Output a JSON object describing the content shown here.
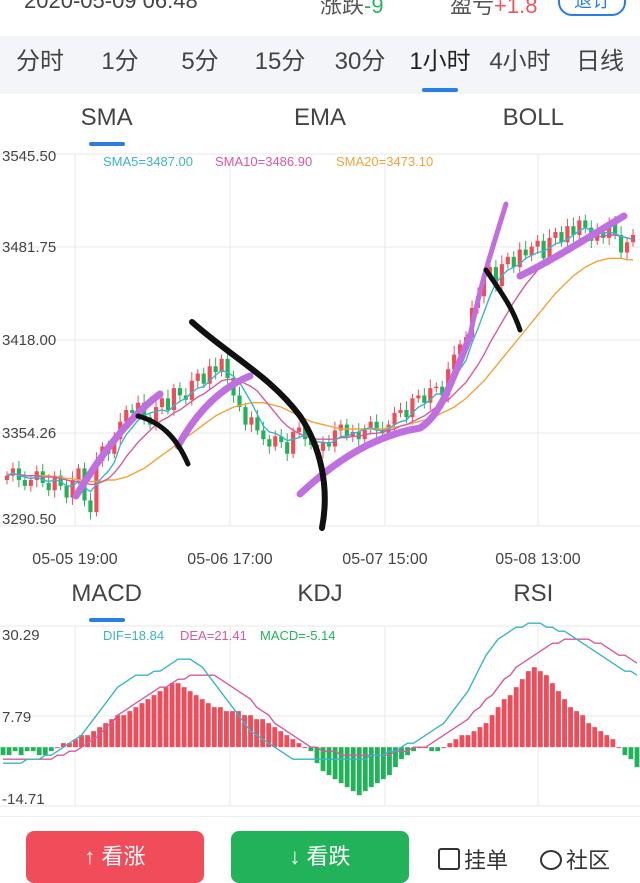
{
  "top": {
    "date": "2020-05-09 06:48",
    "change_label": "涨跌",
    "change_value": "-9",
    "pnl_label": "盈亏",
    "pnl_value": "+1.8",
    "quit_label": "退订"
  },
  "periods": [
    {
      "label": "分时",
      "active": false
    },
    {
      "label": "1分",
      "active": false
    },
    {
      "label": "5分",
      "active": false
    },
    {
      "label": "15分",
      "active": false
    },
    {
      "label": "30分",
      "active": false
    },
    {
      "label": "1小时",
      "active": true
    },
    {
      "label": "4小时",
      "active": false
    },
    {
      "label": "日线",
      "active": false
    }
  ],
  "main_tabs": [
    {
      "label": "SMA",
      "active": true
    },
    {
      "label": "EMA",
      "active": false
    },
    {
      "label": "BOLL",
      "active": false
    }
  ],
  "sub_tabs": [
    {
      "label": "MACD",
      "active": true
    },
    {
      "label": "KDJ",
      "active": false
    },
    {
      "label": "RSI",
      "active": false
    }
  ],
  "legend_main": {
    "sma5": "SMA5=3487.00",
    "sma10": "SMA10=3486.90",
    "sma20": "SMA20=3473.10"
  },
  "legend_sub": {
    "dif": "DIF=18.84",
    "dea": "DEA=21.41",
    "macd": "MACD=-5.14"
  },
  "colors": {
    "up": "#f04c5a",
    "down": "#22b35a",
    "sma5": "#3bb4c9",
    "sma10": "#d65aa0",
    "sma20": "#f0a43a",
    "accent": "#2a7ee3"
  },
  "bottom": {
    "buy_up": "看涨",
    "buy_down": "看跌",
    "orders": "挂单",
    "community": "社区"
  },
  "chart_data": [
    {
      "type": "candlestick",
      "ylim": [
        3290.5,
        3545.5
      ],
      "y_ticks": [
        "3545.50",
        "3481.75",
        "3418.00",
        "3354.26",
        "3290.50"
      ],
      "x_ticks": [
        "05-05 19:00",
        "05-06 17:00",
        "05-07 15:00",
        "05-08 13:00"
      ],
      "grid": true,
      "close": [
        3325,
        3330,
        3322,
        3318,
        3322,
        3328,
        3320,
        3315,
        3325,
        3318,
        3310,
        3322,
        3330,
        3308,
        3300,
        3335,
        3345,
        3340,
        3350,
        3362,
        3370,
        3368,
        3375,
        3365,
        3360,
        3372,
        3378,
        3370,
        3385,
        3380,
        3377,
        3390,
        3395,
        3388,
        3400,
        3396,
        3405,
        3392,
        3380,
        3372,
        3360,
        3365,
        3356,
        3350,
        3345,
        3352,
        3348,
        3340,
        3355,
        3358,
        3350,
        3346,
        3342,
        3348,
        3345,
        3356,
        3360,
        3352,
        3355,
        3350,
        3357,
        3362,
        3356,
        3354,
        3360,
        3368,
        3370,
        3365,
        3378,
        3380,
        3375,
        3385,
        3386,
        3380,
        3398,
        3408,
        3415,
        3420,
        3440,
        3448,
        3462,
        3468,
        3455,
        3470,
        3475,
        3468,
        3480,
        3476,
        3482,
        3486,
        3474,
        3488,
        3492,
        3485,
        3496,
        3490,
        3500,
        3495,
        3486,
        3492,
        3488,
        3498,
        3490,
        3478,
        3485,
        3490
      ],
      "sma5": [
        3325,
        3327,
        3325,
        3324,
        3323,
        3324,
        3322,
        3321,
        3322,
        3321,
        3318,
        3318,
        3321,
        3317,
        3314,
        3319,
        3324,
        3328,
        3334,
        3346,
        3353,
        3358,
        3363,
        3366,
        3368,
        3369,
        3370,
        3369,
        3373,
        3376,
        3378,
        3382,
        3385,
        3386,
        3390,
        3394,
        3397,
        3396,
        3393,
        3389,
        3382,
        3375,
        3367,
        3359,
        3355,
        3354,
        3352,
        3349,
        3350,
        3351,
        3353,
        3350,
        3348,
        3348,
        3347,
        3349,
        3352,
        3352,
        3354,
        3355,
        3357,
        3358,
        3356,
        3356,
        3357,
        3360,
        3362,
        3363,
        3368,
        3372,
        3374,
        3377,
        3381,
        3381,
        3385,
        3391,
        3398,
        3404,
        3416,
        3426,
        3437,
        3448,
        3457,
        3462,
        3466,
        3468,
        3470,
        3474,
        3476,
        3478,
        3479,
        3481,
        3484,
        3485,
        3487,
        3490,
        3493,
        3495,
        3493,
        3493,
        3491,
        3492,
        3491,
        3489,
        3488,
        3487
      ],
      "sma10": [
        3325,
        3326,
        3326,
        3325,
        3325,
        3325,
        3324,
        3324,
        3324,
        3323,
        3322,
        3321,
        3321,
        3320,
        3319,
        3319,
        3321,
        3323,
        3327,
        3332,
        3338,
        3343,
        3348,
        3352,
        3356,
        3360,
        3363,
        3365,
        3368,
        3370,
        3373,
        3376,
        3379,
        3381,
        3384,
        3387,
        3390,
        3391,
        3391,
        3390,
        3388,
        3386,
        3383,
        3378,
        3373,
        3368,
        3363,
        3359,
        3356,
        3354,
        3352,
        3351,
        3350,
        3350,
        3350,
        3350,
        3351,
        3351,
        3352,
        3352,
        3353,
        3354,
        3354,
        3355,
        3356,
        3357,
        3359,
        3360,
        3362,
        3364,
        3366,
        3369,
        3372,
        3374,
        3377,
        3381,
        3385,
        3389,
        3395,
        3401,
        3408,
        3416,
        3423,
        3430,
        3437,
        3444,
        3450,
        3456,
        3461,
        3466,
        3470,
        3473,
        3476,
        3479,
        3481,
        3483,
        3485,
        3487,
        3488,
        3489,
        3489,
        3490,
        3490,
        3489,
        3488,
        3487
      ],
      "sma20": [
        3326,
        3326,
        3326,
        3325,
        3325,
        3325,
        3325,
        3325,
        3324,
        3324,
        3323,
        3323,
        3322,
        3322,
        3321,
        3321,
        3321,
        3322,
        3322,
        3323,
        3324,
        3326,
        3328,
        3330,
        3333,
        3336,
        3339,
        3342,
        3345,
        3348,
        3351,
        3354,
        3357,
        3360,
        3363,
        3366,
        3368,
        3370,
        3372,
        3373,
        3374,
        3375,
        3375,
        3375,
        3374,
        3373,
        3372,
        3370,
        3368,
        3366,
        3364,
        3362,
        3361,
        3360,
        3359,
        3358,
        3357,
        3357,
        3357,
        3357,
        3357,
        3357,
        3357,
        3357,
        3358,
        3358,
        3359,
        3360,
        3361,
        3362,
        3363,
        3364,
        3366,
        3368,
        3370,
        3372,
        3375,
        3378,
        3382,
        3386,
        3390,
        3395,
        3400,
        3405,
        3410,
        3415,
        3420,
        3425,
        3430,
        3435,
        3440,
        3445,
        3450,
        3454,
        3458,
        3462,
        3465,
        3468,
        3470,
        3472,
        3473,
        3474,
        3474,
        3474,
        3473,
        3473
      ]
    },
    {
      "type": "bar",
      "ylim": [
        -14.71,
        30.29
      ],
      "y_ticks": [
        "30.29",
        "7.79",
        "-14.71"
      ],
      "macd": [
        -2,
        -2,
        -1,
        -2,
        -1,
        -1,
        -2,
        -2,
        -1,
        0,
        1,
        1,
        2,
        3,
        3,
        4,
        5,
        6,
        7,
        8,
        8,
        9,
        10,
        11,
        12,
        13,
        14,
        15,
        16,
        16,
        15,
        14,
        13,
        12,
        11,
        10,
        10,
        9,
        9,
        9,
        8,
        8,
        7,
        7,
        6,
        5,
        4,
        3,
        2,
        1,
        0,
        -1,
        -4,
        -6,
        -7,
        -8,
        -9,
        -10,
        -11,
        -12,
        -11,
        -10,
        -9,
        -8,
        -7,
        -5,
        -3,
        -2,
        -1,
        0,
        0,
        -1,
        -1,
        0,
        1,
        2,
        3,
        3,
        4,
        5,
        6,
        8,
        10,
        12,
        13,
        15,
        17,
        19,
        20,
        19,
        18,
        16,
        14,
        12,
        10,
        9,
        8,
        6,
        5,
        4,
        3,
        2,
        0,
        -2,
        -3,
        -5
      ],
      "dif": [
        -4,
        -4,
        -4,
        -4,
        -3,
        -3,
        -3,
        -2,
        -2,
        -1,
        0,
        1,
        2,
        3,
        5,
        7,
        9,
        11,
        13,
        15,
        16,
        17,
        18,
        18,
        18,
        19,
        19,
        20,
        21,
        22,
        22,
        22,
        21,
        20,
        18,
        16,
        14,
        12,
        10,
        8,
        6,
        4,
        3,
        2,
        1,
        0,
        -1,
        -2,
        -3,
        -3,
        -3,
        -3,
        -3,
        -3,
        -3,
        -3,
        -3,
        -3,
        -3,
        -3,
        -3,
        -2,
        -2,
        -2,
        -1,
        -1,
        0,
        1,
        1,
        2,
        3,
        4,
        5,
        6,
        8,
        10,
        12,
        14,
        17,
        20,
        23,
        25,
        27,
        28,
        29,
        30,
        30,
        31,
        31,
        31,
        30,
        30,
        29,
        29,
        28,
        27,
        26,
        25,
        24,
        23,
        22,
        21,
        20,
        19,
        19,
        18
      ],
      "dea": [
        -3,
        -3,
        -3,
        -3,
        -3,
        -3,
        -3,
        -3,
        -3,
        -2,
        -2,
        -1,
        -1,
        0,
        1,
        2,
        3,
        5,
        6,
        8,
        9,
        10,
        11,
        12,
        13,
        14,
        15,
        15,
        16,
        17,
        17,
        18,
        18,
        18,
        18,
        18,
        17,
        16,
        15,
        14,
        13,
        12,
        10,
        9,
        8,
        6,
        5,
        4,
        3,
        2,
        1,
        0,
        0,
        -1,
        -1,
        -1,
        -2,
        -2,
        -2,
        -2,
        -2,
        -2,
        -2,
        -2,
        -2,
        -1,
        -1,
        -1,
        0,
        0,
        0,
        1,
        2,
        3,
        4,
        5,
        6,
        7,
        9,
        10,
        12,
        13,
        15,
        17,
        18,
        20,
        21,
        22,
        23,
        24,
        25,
        26,
        26,
        27,
        27,
        27,
        27,
        27,
        26,
        26,
        25,
        24,
        23,
        23,
        22,
        21
      ]
    }
  ]
}
